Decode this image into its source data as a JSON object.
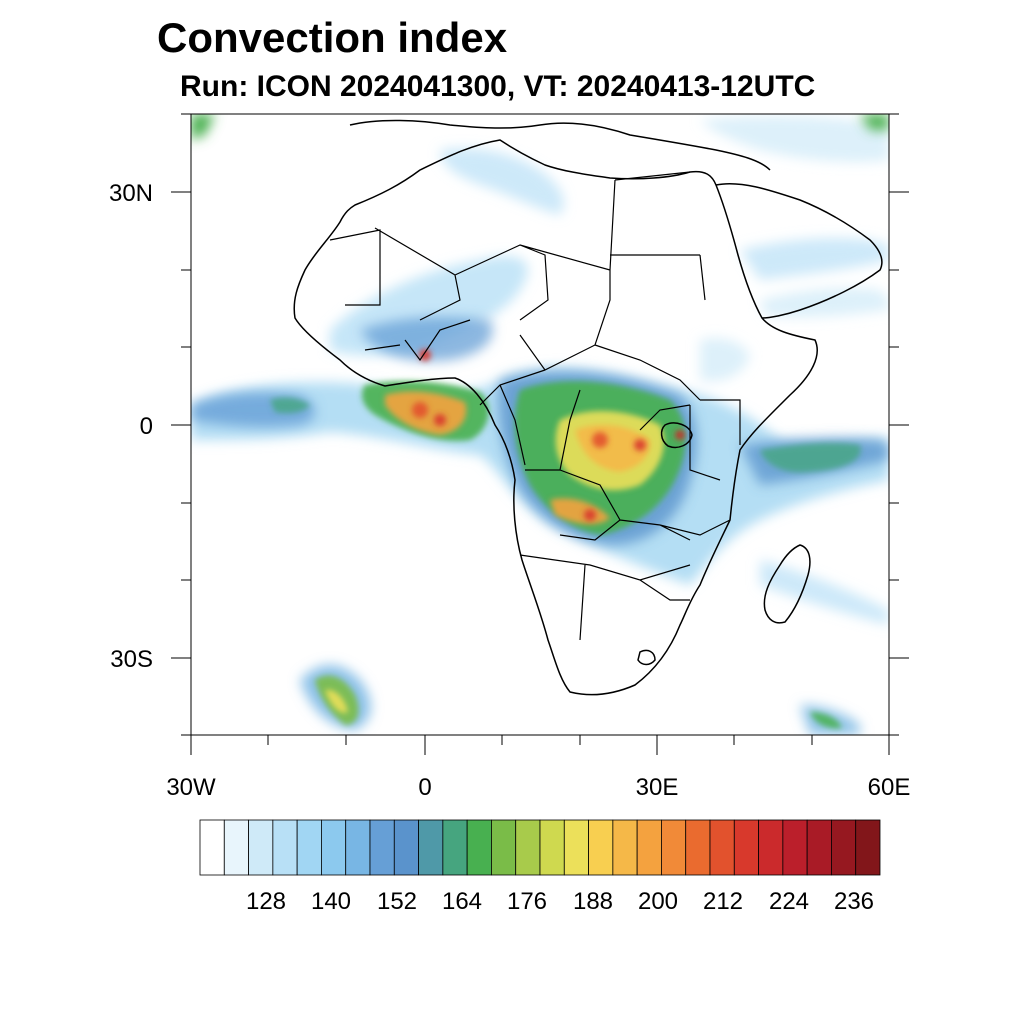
{
  "title": "Convection index",
  "subtitle": "Run: ICON 2024041300,  VT: 20240413-12UTC",
  "map": {
    "region": "Africa",
    "lon_range": [
      -30,
      60
    ],
    "lat_range": [
      -40,
      40
    ],
    "lat_labels": [
      "30N",
      "0",
      "30S"
    ],
    "lon_labels": [
      "30W",
      "0",
      "30E",
      "60E"
    ]
  },
  "colorbar": {
    "labels": [
      "128",
      "140",
      "152",
      "164",
      "176",
      "188",
      "200",
      "212",
      "224",
      "236"
    ],
    "colors": [
      "#ffffff",
      "#e8f5fc",
      "#cfeaf8",
      "#b8e0f6",
      "#a1d6f3",
      "#8cc9ee",
      "#78b6e4",
      "#669fd6",
      "#5a93cc",
      "#4f99a8",
      "#46a57f",
      "#48b050",
      "#7abc48",
      "#a8cb4b",
      "#cfd94f",
      "#ece05a",
      "#f8cf50",
      "#f5b848",
      "#f4a23f",
      "#f18a38",
      "#ea6b2f",
      "#e2522d",
      "#d8392c",
      "#cb2a2c",
      "#bb1f2b",
      "#a91b26",
      "#961820",
      "#82161a"
    ]
  }
}
